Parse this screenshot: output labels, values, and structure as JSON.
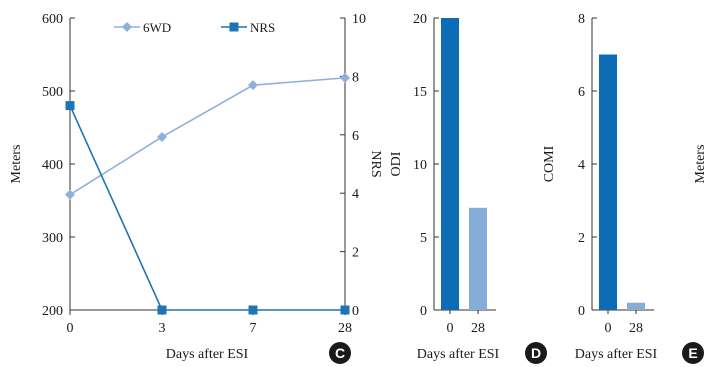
{
  "colors": {
    "sixwd": "#8fb0dd",
    "nrs": "#1f74b4",
    "bar_dark": "#0b6cb5",
    "bar_light": "#86acd8",
    "axis": "#333333",
    "badge": "#1a1a1a"
  },
  "chart_data": [
    {
      "panel": "C",
      "type": "line",
      "categories": [
        "0",
        "3",
        "7",
        "28"
      ],
      "xlabel": "Days after ESI",
      "ylabel": "Meters",
      "ylabel_right": "NRS",
      "ylim": [
        200,
        600
      ],
      "yticks": [
        "200",
        "300",
        "400",
        "500",
        "600"
      ],
      "ylim_right": [
        0,
        10
      ],
      "yticks_right": [
        "0",
        "2",
        "4",
        "6",
        "8",
        "10"
      ],
      "legend_position": "top",
      "series": [
        {
          "name": "6WD",
          "axis": "left",
          "marker": "diamond",
          "values": [
            358,
            437,
            508,
            518
          ]
        },
        {
          "name": "NRS",
          "axis": "right",
          "marker": "square",
          "values": [
            7,
            0,
            0,
            0
          ]
        }
      ]
    },
    {
      "panel": "D",
      "type": "bar",
      "categories": [
        "0",
        "28"
      ],
      "values": [
        20,
        7
      ],
      "xlabel": "Days after ESI",
      "ylabel": "ODI",
      "ylim": [
        0,
        20
      ],
      "yticks": [
        "0",
        "5",
        "10",
        "15",
        "20"
      ]
    },
    {
      "panel": "E",
      "type": "bar",
      "categories": [
        "0",
        "28"
      ],
      "values": [
        7,
        0.2
      ],
      "xlabel": "Days after ESI",
      "ylabel": "COMI",
      "ylim": [
        0,
        8
      ],
      "yticks": [
        "0",
        "2",
        "4",
        "6",
        "8"
      ]
    }
  ],
  "cutoff_label": "Meters"
}
